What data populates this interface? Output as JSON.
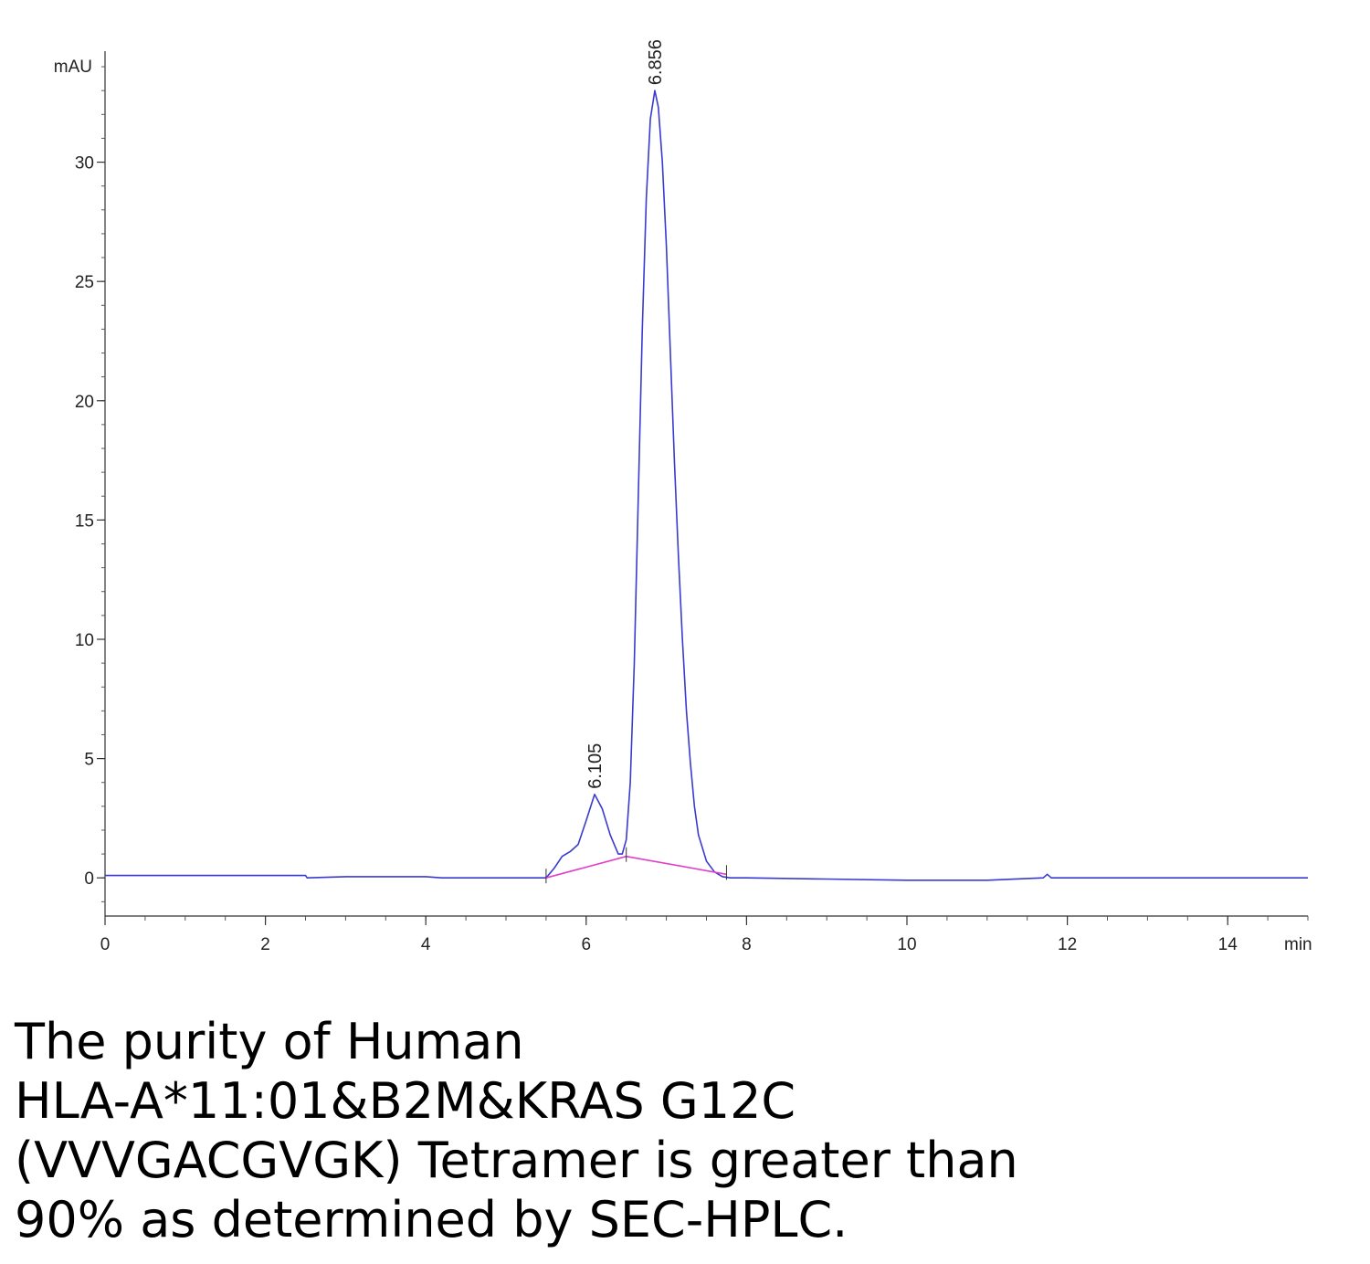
{
  "chart_data": {
    "type": "line",
    "title": "",
    "xlabel": "min",
    "ylabel": "mAU",
    "xlim": [
      0,
      15
    ],
    "ylim": [
      -1.6,
      34.5
    ],
    "x_ticks": [
      0,
      2,
      4,
      6,
      8,
      10,
      12,
      14
    ],
    "x_tick_labels": [
      "0",
      "2",
      "4",
      "6",
      "8",
      "10",
      "12",
      "14"
    ],
    "y_ticks": [
      0,
      5,
      10,
      15,
      20,
      25,
      30
    ],
    "y_tick_labels": [
      "0",
      "5",
      "10",
      "15",
      "20",
      "25",
      "30"
    ],
    "grid": false,
    "series": [
      {
        "color": "#3a3ad0",
        "x": [
          0,
          1,
          2,
          2.5,
          2.52,
          3,
          4,
          4.2,
          5,
          5.5,
          5.6,
          5.7,
          5.8,
          5.9,
          6.0,
          6.105,
          6.2,
          6.3,
          6.4,
          6.45,
          6.5,
          6.55,
          6.6,
          6.65,
          6.7,
          6.75,
          6.8,
          6.856,
          6.9,
          6.95,
          7.0,
          7.05,
          7.1,
          7.15,
          7.2,
          7.25,
          7.3,
          7.35,
          7.4,
          7.5,
          7.6,
          7.7,
          7.8,
          8,
          9,
          10,
          11,
          11.7,
          11.75,
          11.8,
          12,
          13,
          14,
          15
        ],
        "y": [
          0.1,
          0.1,
          0.1,
          0.1,
          0,
          0.05,
          0.05,
          0,
          0,
          0,
          0.4,
          0.9,
          1.1,
          1.4,
          2.4,
          3.5,
          2.9,
          1.8,
          1.0,
          1.0,
          1.6,
          4.0,
          9.0,
          16.0,
          23.0,
          28.5,
          31.8,
          33.0,
          32.3,
          30.0,
          26.5,
          22.0,
          17.5,
          13.5,
          10.0,
          7.0,
          4.8,
          3.0,
          1.8,
          0.7,
          0.25,
          0.05,
          0,
          0,
          -0.05,
          -0.1,
          -0.1,
          0,
          0.15,
          0,
          0,
          0,
          0,
          0
        ]
      },
      {
        "color": "#e040c8",
        "x": [
          5.5,
          6.5,
          7.75
        ],
        "y": [
          0,
          0.9,
          0.15
        ]
      }
    ],
    "annotations": [
      {
        "text": "6.105",
        "x": 6.105,
        "y": 3.5
      },
      {
        "text": "6.856",
        "x": 6.856,
        "y": 33.0
      }
    ]
  },
  "caption": {
    "lines": [
      "The purity of Human",
      "HLA-A*11:01&B2M&KRAS G12C",
      "(VVVGACGVGK) Tetramer is greater than",
      "90% as determined by SEC-HPLC."
    ]
  }
}
